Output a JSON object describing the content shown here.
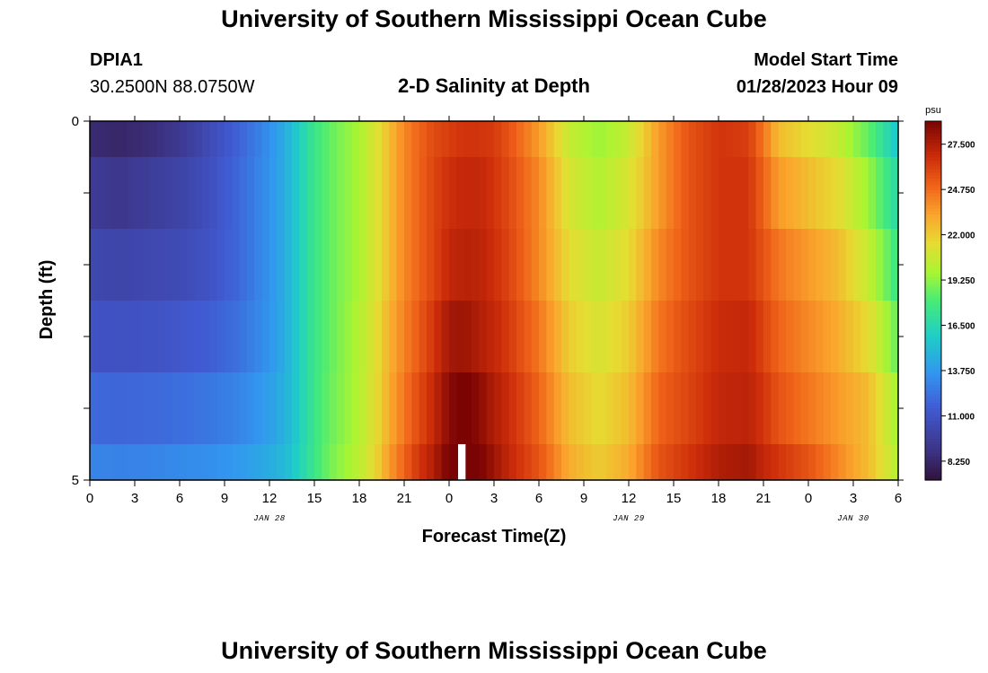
{
  "header": {
    "title": "University of Southern Mississippi Ocean Cube",
    "station_id": "DPIA1",
    "coordinates": "30.2500N  88.0750W",
    "subtitle": "2-D Salinity at Depth",
    "model_start_label": "Model Start Time",
    "model_start_value": "01/28/2023 Hour 09"
  },
  "footer": {
    "title": "University of Southern Mississippi Ocean Cube"
  },
  "chart_data": {
    "type": "heatmap",
    "title": "2-D Salinity at Depth",
    "xlabel": "Forecast Time(Z)",
    "ylabel": "Depth (ft)",
    "xlim": [
      0,
      54
    ],
    "ylim": [
      5,
      0
    ],
    "x_ticks": [
      0,
      3,
      6,
      9,
      12,
      15,
      18,
      21,
      24,
      27,
      30,
      33,
      36,
      39,
      42,
      45,
      48,
      51,
      54
    ],
    "x_tick_labels": [
      "0",
      "3",
      "6",
      "9",
      "12",
      "15",
      "18",
      "21",
      "0",
      "3",
      "6",
      "9",
      "12",
      "15",
      "18",
      "21",
      "0",
      "3",
      "6"
    ],
    "day_labels": [
      {
        "x": 12,
        "label": "JAN 28"
      },
      {
        "x": 36,
        "label": "JAN 29"
      },
      {
        "x": 51,
        "label": "JAN 30"
      }
    ],
    "y_ticks": [
      0,
      5
    ],
    "y_tick_labels": [
      "0",
      "5"
    ],
    "depth_levels": [
      0,
      0.5,
      1.5,
      2.5,
      3.5,
      4.5
    ],
    "time_hours": [
      0,
      2,
      4,
      6,
      8,
      10,
      12,
      13,
      14,
      15,
      16,
      18,
      19,
      20,
      21,
      22,
      23,
      24,
      25,
      26,
      27,
      28,
      30,
      32,
      34,
      36,
      38,
      40,
      42,
      44,
      45,
      46,
      48,
      50,
      52,
      54
    ],
    "salinity_psu": [
      [
        8.5,
        8.2,
        8.6,
        9.3,
        10.5,
        11.8,
        13.4,
        14.5,
        16,
        17.5,
        18.5,
        19.8,
        21,
        22.5,
        24,
        25,
        25.8,
        26.2,
        26.5,
        26.5,
        26.3,
        25.5,
        23.5,
        20.5,
        19.5,
        20.5,
        23.5,
        25.5,
        26.5,
        26.2,
        24.5,
        22.5,
        21.5,
        20.5,
        18.5,
        15.5
      ],
      [
        9.5,
        9.2,
        9.6,
        10,
        10.8,
        12,
        13.5,
        14.5,
        16,
        17.5,
        18.5,
        19.8,
        21,
        22.5,
        24,
        25,
        26,
        26.7,
        27,
        27,
        26.5,
        25.8,
        24,
        21,
        20,
        21,
        23.5,
        25.5,
        26.5,
        26.5,
        25,
        23.5,
        22.5,
        21.5,
        19.5,
        16.5
      ],
      [
        10.3,
        10.1,
        10.3,
        10.5,
        11,
        12,
        13.5,
        14.5,
        16,
        17.5,
        18.5,
        19.8,
        21,
        22.5,
        24,
        25,
        26,
        27,
        27.3,
        27.2,
        26.7,
        26,
        24,
        21.5,
        20.5,
        21.5,
        24,
        25.5,
        26.5,
        26.5,
        25.5,
        24.5,
        23.5,
        22.5,
        20.5,
        17.5
      ],
      [
        11,
        10.9,
        11,
        11.2,
        11.6,
        12.3,
        13.6,
        14.5,
        16,
        17.5,
        18.5,
        20,
        21.2,
        22.8,
        24.2,
        25.3,
        26.5,
        27.8,
        28,
        27.5,
        27,
        26.3,
        24.5,
        22,
        21,
        22,
        24.5,
        25.8,
        26.8,
        27,
        26,
        25,
        24,
        23,
        21.5,
        18.5
      ],
      [
        12,
        11.9,
        12,
        12.2,
        12.5,
        13,
        14,
        14.7,
        16,
        17.5,
        18.6,
        20,
        21.3,
        23,
        24.5,
        25.8,
        27,
        28.5,
        29,
        28.5,
        27.5,
        26.8,
        25,
        22.5,
        21.5,
        22.5,
        25,
        26,
        27,
        27.2,
        26.5,
        25.5,
        24.5,
        23.5,
        22.5,
        19.5
      ],
      [
        13,
        12.9,
        13,
        13.2,
        13.4,
        13.8,
        14.5,
        15,
        16.2,
        17.5,
        18.8,
        20.2,
        21.5,
        23.5,
        25,
        26.5,
        27.5,
        29,
        29.3,
        29,
        28,
        27,
        25.5,
        23,
        22,
        23,
        25.5,
        26.5,
        27.5,
        27.8,
        27,
        26.5,
        25.5,
        24,
        22.5,
        20
      ]
    ],
    "missing_cell": {
      "x_range": [
        24.6,
        25.1
      ],
      "y_range": [
        4.5,
        5
      ]
    },
    "colorbar": {
      "label": "psu",
      "ticks": [
        8.25,
        11.0,
        13.75,
        16.5,
        19.25,
        22.0,
        24.75,
        27.5
      ],
      "tick_labels": [
        "8.250",
        "11.000",
        "13.750",
        "16.500",
        "19.250",
        "22.000",
        "24.750",
        "27.500"
      ],
      "range": [
        7.1,
        28.9
      ]
    },
    "grid": false,
    "legend": "right"
  }
}
